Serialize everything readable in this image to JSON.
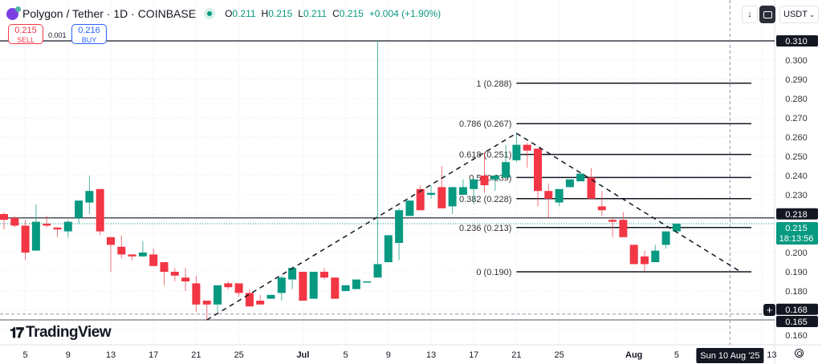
{
  "header": {
    "title": "Polygon / Tether · 1D · COINBASE",
    "ohlc": {
      "o_label": "O",
      "o": "0.211",
      "h_label": "H",
      "h": "0.215",
      "l_label": "L",
      "l": "0.211",
      "c_label": "C",
      "c": "0.215",
      "change": "+0.004 (+1.90%)"
    },
    "market_status": "open"
  },
  "trade": {
    "sell_price": "0.215",
    "sell_label": "SELL",
    "spread": "0.001",
    "buy_price": "0.216",
    "buy_label": "BUY"
  },
  "toolbar": {
    "currency": "USDT",
    "download_icon": "arrow-down-icon",
    "fullscreen_icon": "square-icon"
  },
  "branding": {
    "name": "TradingView"
  },
  "colors": {
    "up": "#089981",
    "down": "#f23645",
    "line": "#131722",
    "grid": "#e6e8ee"
  },
  "chart_data": {
    "type": "candlestick",
    "symbol": "Polygon / Tether",
    "interval": "1D",
    "start_date": "2025-06-03",
    "ylim": [
      0.155,
      0.315
    ],
    "grid": true,
    "y_ticks": [
      "0.300",
      "0.290",
      "0.280",
      "0.270",
      "0.260",
      "0.250",
      "0.240",
      "0.230",
      "0.200",
      "0.190",
      "0.180",
      "0.160"
    ],
    "x_ticks": [
      {
        "date": "2025-06-05",
        "label": "5"
      },
      {
        "date": "2025-06-09",
        "label": "9"
      },
      {
        "date": "2025-06-13",
        "label": "13"
      },
      {
        "date": "2025-06-17",
        "label": "17"
      },
      {
        "date": "2025-06-21",
        "label": "21"
      },
      {
        "date": "2025-06-25",
        "label": "25"
      },
      {
        "date": "2025-07-01",
        "label": "Jul"
      },
      {
        "date": "2025-07-05",
        "label": "5"
      },
      {
        "date": "2025-07-09",
        "label": "9"
      },
      {
        "date": "2025-07-13",
        "label": "13"
      },
      {
        "date": "2025-07-17",
        "label": "17"
      },
      {
        "date": "2025-07-21",
        "label": "21"
      },
      {
        "date": "2025-07-25",
        "label": "25"
      },
      {
        "date": "2025-08-01",
        "label": "Aug"
      },
      {
        "date": "2025-08-05",
        "label": "5"
      },
      {
        "date": "2025-08-13",
        "label": "13"
      }
    ],
    "ohlc": [
      [
        0.22,
        0.221,
        0.212,
        0.217
      ],
      [
        0.218,
        0.219,
        0.213,
        0.214
      ],
      [
        0.214,
        0.217,
        0.196,
        0.2
      ],
      [
        0.201,
        0.225,
        0.201,
        0.216
      ],
      [
        0.215,
        0.219,
        0.213,
        0.214
      ],
      [
        0.213,
        0.213,
        0.208,
        0.212
      ],
      [
        0.211,
        0.217,
        0.208,
        0.216
      ],
      [
        0.218,
        0.227,
        0.215,
        0.227
      ],
      [
        0.226,
        0.24,
        0.22,
        0.232
      ],
      [
        0.233,
        0.233,
        0.209,
        0.211
      ],
      [
        0.208,
        0.208,
        0.19,
        0.204
      ],
      [
        0.203,
        0.209,
        0.197,
        0.199
      ],
      [
        0.199,
        0.199,
        0.196,
        0.198
      ],
      [
        0.198,
        0.206,
        0.198,
        0.2
      ],
      [
        0.199,
        0.202,
        0.193,
        0.193
      ],
      [
        0.195,
        0.195,
        0.183,
        0.19
      ],
      [
        0.19,
        0.192,
        0.185,
        0.188
      ],
      [
        0.187,
        0.192,
        0.18,
        0.185
      ],
      [
        0.184,
        0.188,
        0.169,
        0.173
      ],
      [
        0.175,
        0.175,
        0.165,
        0.173
      ],
      [
        0.173,
        0.183,
        0.169,
        0.183
      ],
      [
        0.184,
        0.185,
        0.181,
        0.182
      ],
      [
        0.184,
        0.184,
        0.177,
        0.179
      ],
      [
        0.179,
        0.181,
        0.172,
        0.172
      ],
      [
        0.175,
        0.178,
        0.173,
        0.173
      ],
      [
        0.176,
        0.178,
        0.176,
        0.178
      ],
      [
        0.179,
        0.188,
        0.175,
        0.187
      ],
      [
        0.186,
        0.193,
        0.181,
        0.192
      ],
      [
        0.19,
        0.19,
        0.175,
        0.175
      ],
      [
        0.176,
        0.19,
        0.176,
        0.19
      ],
      [
        0.19,
        0.192,
        0.186,
        0.187
      ],
      [
        0.187,
        0.187,
        0.176,
        0.176
      ],
      [
        0.18,
        0.183,
        0.18,
        0.183
      ],
      [
        0.181,
        0.186,
        0.181,
        0.186
      ],
      [
        0.185,
        0.185,
        0.185,
        0.185
      ],
      [
        0.187,
        0.31,
        0.187,
        0.194
      ],
      [
        0.195,
        0.209,
        0.195,
        0.209
      ],
      [
        0.205,
        0.223,
        0.196,
        0.222
      ],
      [
        0.219,
        0.227,
        0.219,
        0.227
      ],
      [
        0.233,
        0.235,
        0.222,
        0.222
      ],
      [
        0.23,
        0.235,
        0.228,
        0.231
      ],
      [
        0.234,
        0.245,
        0.223,
        0.223
      ],
      [
        0.224,
        0.234,
        0.22,
        0.234
      ],
      [
        0.23,
        0.238,
        0.23,
        0.234
      ],
      [
        0.233,
        0.238,
        0.225,
        0.238
      ],
      [
        0.24,
        0.252,
        0.231,
        0.235
      ],
      [
        0.238,
        0.24,
        0.232,
        0.24
      ],
      [
        0.239,
        0.256,
        0.239,
        0.247
      ],
      [
        0.248,
        0.262,
        0.247,
        0.256
      ],
      [
        0.256,
        0.257,
        0.244,
        0.253
      ],
      [
        0.254,
        0.254,
        0.224,
        0.232
      ],
      [
        0.232,
        0.236,
        0.218,
        0.228
      ],
      [
        0.226,
        0.233,
        0.224,
        0.233
      ],
      [
        0.234,
        0.238,
        0.234,
        0.238
      ],
      [
        0.237,
        0.241,
        0.237,
        0.241
      ],
      [
        0.239,
        0.244,
        0.228,
        0.228
      ],
      [
        0.224,
        0.232,
        0.219,
        0.222
      ],
      [
        0.217,
        0.218,
        0.208,
        0.216
      ],
      [
        0.217,
        0.221,
        0.208,
        0.208
      ],
      [
        0.204,
        0.204,
        0.194,
        0.194
      ],
      [
        0.198,
        0.201,
        0.19,
        0.194
      ],
      [
        0.195,
        0.204,
        0.195,
        0.201
      ],
      [
        0.204,
        0.211,
        0.202,
        0.211
      ],
      [
        0.211,
        0.215,
        0.211,
        0.215
      ]
    ],
    "fibonacci": {
      "start_date": "2025-07-21",
      "end_date": "2025-08-12",
      "levels": [
        {
          "ratio": "1",
          "price": 0.288,
          "label": "1 (0.288)"
        },
        {
          "ratio": "0.786",
          "price": 0.267,
          "label": "0.786 (0.267)"
        },
        {
          "ratio": "0.618",
          "price": 0.251,
          "label": "0.618 (0.251)"
        },
        {
          "ratio": "0.5",
          "price": 0.239,
          "label": "0.5 (0.239)"
        },
        {
          "ratio": "0.382",
          "price": 0.228,
          "label": "0.382 (0.228)"
        },
        {
          "ratio": "0.236",
          "price": 0.213,
          "label": "0.236 (0.213)"
        },
        {
          "ratio": "0",
          "price": 0.19,
          "label": "0 (0.190)"
        }
      ]
    },
    "trendlines": [
      {
        "from": {
          "date": "2025-06-22",
          "price": 0.165
        },
        "to": {
          "date": "2025-07-21",
          "price": 0.262
        }
      },
      {
        "from": {
          "date": "2025-07-21",
          "price": 0.262
        },
        "to": {
          "date": "2025-08-11",
          "price": 0.19
        }
      }
    ],
    "horizontal_lines": [
      {
        "price": 0.31,
        "label": "0.310"
      },
      {
        "price": 0.218,
        "label": "0.218"
      },
      {
        "price": 0.165,
        "label": "0.165"
      }
    ],
    "last_price": {
      "price": 0.215,
      "label": "0.215",
      "countdown": "18:13:56"
    },
    "crosshair": {
      "price": 0.168,
      "price_label": "0.168",
      "date": "2025-08-10",
      "date_label": "Sun 10 Aug '25"
    }
  }
}
